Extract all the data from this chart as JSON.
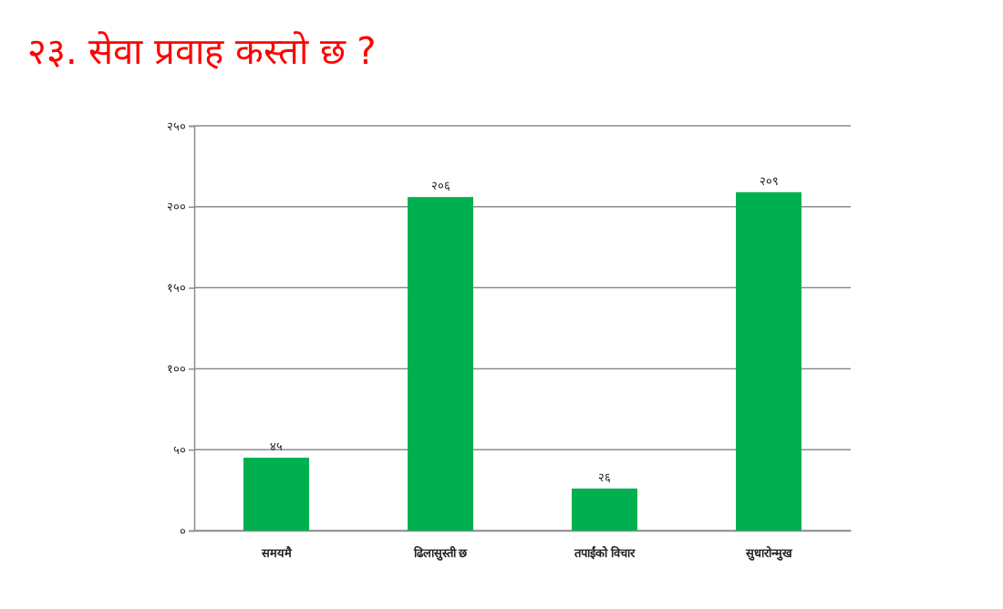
{
  "chart_data": {
    "type": "bar",
    "title": "२३. सेवा प्रवाह कस्तो छ ?",
    "categories": [
      "समयमै",
      "ढिलासुस्ती छ",
      "तपाईंको विचार",
      "सुधारोन्मुख"
    ],
    "values": [
      45,
      206,
      26,
      209
    ],
    "value_labels": [
      "४५",
      "२०६",
      "२६",
      "२०९"
    ],
    "color": "#00b050",
    "ylim": [
      0,
      250
    ],
    "yticks": [
      {
        "value": 0,
        "label": "०"
      },
      {
        "value": 50,
        "label": "५०"
      },
      {
        "value": 100,
        "label": "१००"
      },
      {
        "value": 150,
        "label": "१५०"
      },
      {
        "value": 200,
        "label": "२००"
      },
      {
        "value": 250,
        "label": "२५०"
      }
    ],
    "grid": "y"
  }
}
